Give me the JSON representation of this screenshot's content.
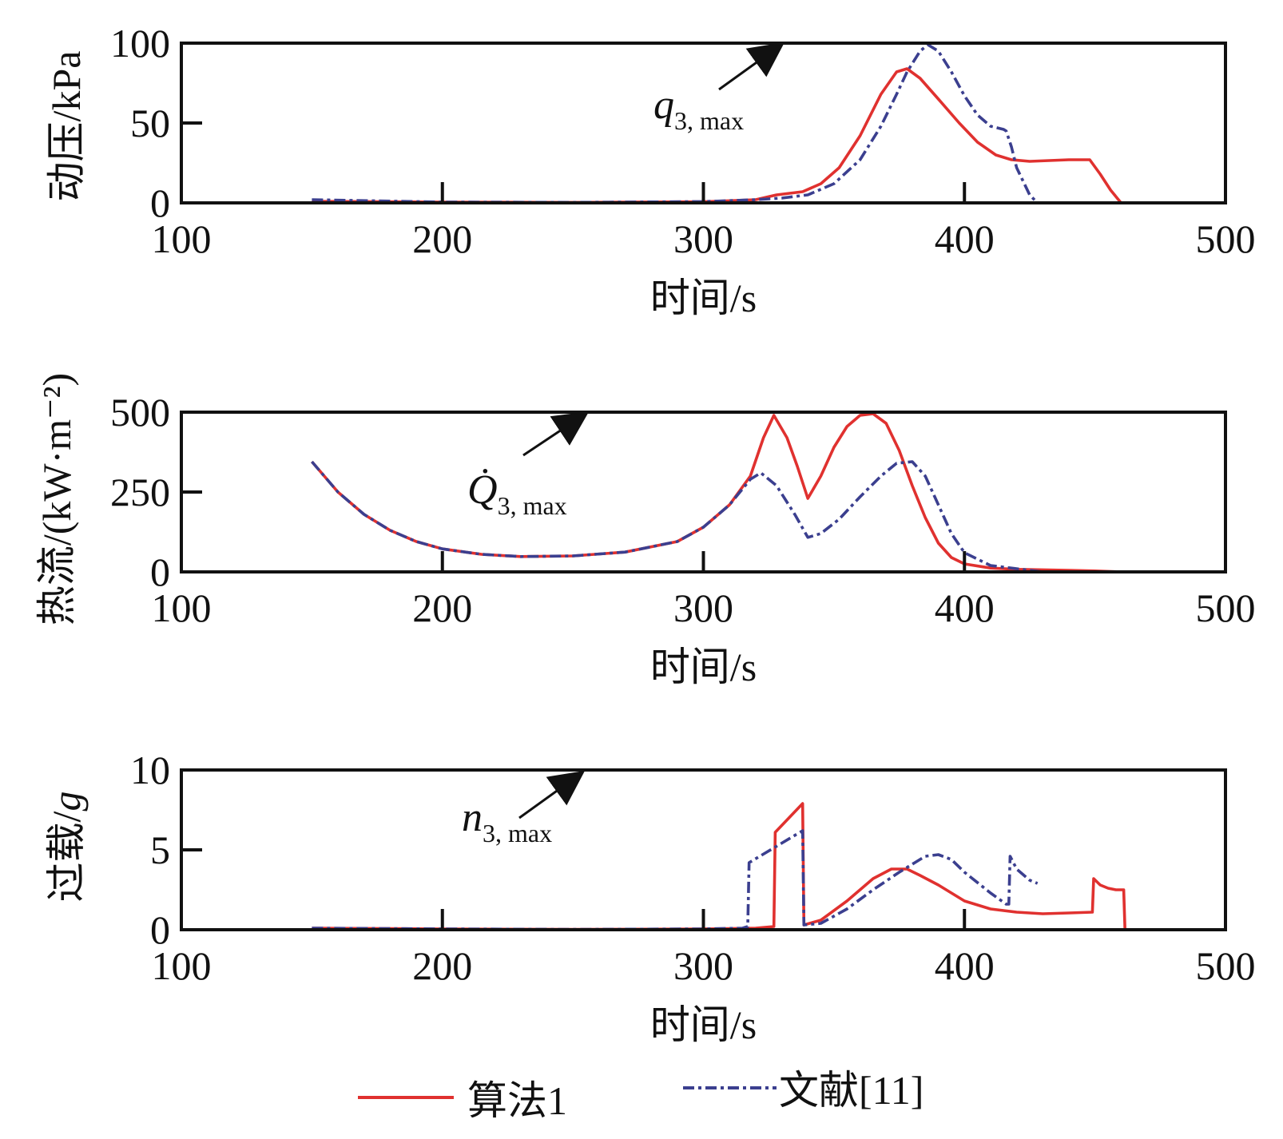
{
  "colors": {
    "algorithm": "#e0312f",
    "reference": "#3b3f8f",
    "axes": "#111111"
  },
  "legend": {
    "algorithm_label": "算法1",
    "reference_label": "文献[11]"
  },
  "chart_data": [
    {
      "type": "line",
      "id": "dynamic_pressure",
      "ylabel": "动压/kPa",
      "xlabel": "时间/s",
      "xlim": [
        100,
        500
      ],
      "ylim": [
        0,
        100
      ],
      "xticks": [
        100,
        200,
        300,
        400,
        500
      ],
      "yticks": [
        0,
        50,
        100
      ],
      "annotation": {
        "symbol": "q",
        "subscript": "3, max",
        "value": 100
      },
      "series": [
        {
          "name": "算法1",
          "x": [
            150,
            200,
            250,
            300,
            320,
            328,
            338,
            345,
            352,
            360,
            368,
            374,
            378,
            383,
            390,
            398,
            405,
            412,
            418,
            425,
            440,
            448,
            452,
            456,
            460
          ],
          "y": [
            1,
            0.5,
            0.3,
            0.7,
            2,
            5,
            7,
            12,
            22,
            42,
            68,
            82,
            84,
            78,
            65,
            50,
            38,
            30,
            27,
            26,
            27,
            27,
            18,
            8,
            0
          ]
        },
        {
          "name": "文献[11]",
          "x": [
            150,
            200,
            250,
            300,
            320,
            330,
            340,
            350,
            360,
            368,
            374,
            378,
            383,
            386,
            390,
            395,
            400,
            405,
            410,
            415,
            416,
            418,
            420,
            425,
            428
          ],
          "y": [
            2,
            0.5,
            0.3,
            0.8,
            2,
            3,
            5,
            12,
            27,
            48,
            68,
            82,
            95,
            99,
            95,
            82,
            67,
            55,
            48,
            46,
            45,
            35,
            22,
            5,
            0
          ]
        }
      ]
    },
    {
      "type": "line",
      "id": "heat_flux",
      "ylabel": "热流/(kW·m⁻²)",
      "xlabel": "时间/s",
      "xlim": [
        100,
        500
      ],
      "ylim": [
        0,
        500
      ],
      "xticks": [
        100,
        200,
        300,
        400,
        500
      ],
      "yticks": [
        0,
        250,
        500
      ],
      "annotation": {
        "symbol": "Q̇",
        "subscript": "3, max",
        "value": 500
      },
      "series": [
        {
          "name": "算法1",
          "x": [
            150,
            160,
            170,
            180,
            190,
            200,
            215,
            230,
            250,
            270,
            290,
            300,
            310,
            318,
            323,
            327,
            332,
            336,
            340,
            345,
            350,
            355,
            360,
            365,
            370,
            375,
            380,
            385,
            390,
            395,
            400,
            410,
            420,
            440,
            450,
            460
          ],
          "y": [
            345,
            250,
            180,
            130,
            95,
            72,
            55,
            48,
            50,
            62,
            95,
            140,
            210,
            300,
            420,
            490,
            420,
            330,
            230,
            300,
            390,
            455,
            490,
            495,
            465,
            380,
            270,
            170,
            90,
            45,
            25,
            12,
            8,
            5,
            3,
            0
          ]
        },
        {
          "name": "文献[11]",
          "x": [
            150,
            160,
            170,
            180,
            190,
            200,
            215,
            230,
            250,
            270,
            290,
            300,
            310,
            318,
            322,
            328,
            335,
            340,
            345,
            352,
            360,
            368,
            374,
            380,
            385,
            390,
            395,
            400,
            410,
            420,
            430
          ],
          "y": [
            345,
            250,
            180,
            130,
            95,
            72,
            55,
            48,
            50,
            62,
            95,
            140,
            210,
            290,
            310,
            270,
            180,
            108,
            120,
            165,
            235,
            300,
            340,
            345,
            300,
            210,
            120,
            60,
            20,
            10,
            0
          ]
        }
      ]
    },
    {
      "type": "line",
      "id": "overload",
      "ylabel": "过载/g",
      "xlabel": "时间/s",
      "xlim": [
        100,
        500
      ],
      "ylim": [
        0,
        10
      ],
      "xticks": [
        100,
        200,
        300,
        400,
        500
      ],
      "yticks": [
        0,
        5,
        10
      ],
      "annotation": {
        "symbol": "n",
        "subscript": "3, max",
        "value": 10
      },
      "series": [
        {
          "name": "算法1",
          "x": [
            150,
            200,
            250,
            300,
            320,
            327,
            327.5,
            338,
            338.5,
            345,
            355,
            365,
            372,
            378,
            383,
            390,
            400,
            410,
            420,
            430,
            440,
            449,
            449.5,
            452,
            455,
            458,
            461,
            461.5
          ],
          "y": [
            0.1,
            0.05,
            0.02,
            0.05,
            0.1,
            0.2,
            6.1,
            7.9,
            0.3,
            0.6,
            1.8,
            3.2,
            3.8,
            3.8,
            3.4,
            2.8,
            1.8,
            1.3,
            1.1,
            1.0,
            1.05,
            1.1,
            3.2,
            2.8,
            2.6,
            2.5,
            2.5,
            0
          ]
        },
        {
          "name": "文献[11]",
          "x": [
            150,
            200,
            250,
            300,
            315,
            317,
            317.5,
            338,
            338.5,
            345,
            355,
            365,
            375,
            385,
            390,
            395,
            400,
            410,
            416,
            417,
            417.5,
            420,
            425,
            428
          ],
          "y": [
            0.1,
            0.05,
            0.02,
            0.05,
            0.1,
            0.2,
            4.2,
            6.2,
            0.3,
            0.4,
            1.3,
            2.5,
            3.6,
            4.6,
            4.7,
            4.4,
            3.6,
            2.3,
            1.6,
            1.6,
            4.6,
            3.8,
            3.1,
            2.9
          ]
        }
      ]
    }
  ]
}
